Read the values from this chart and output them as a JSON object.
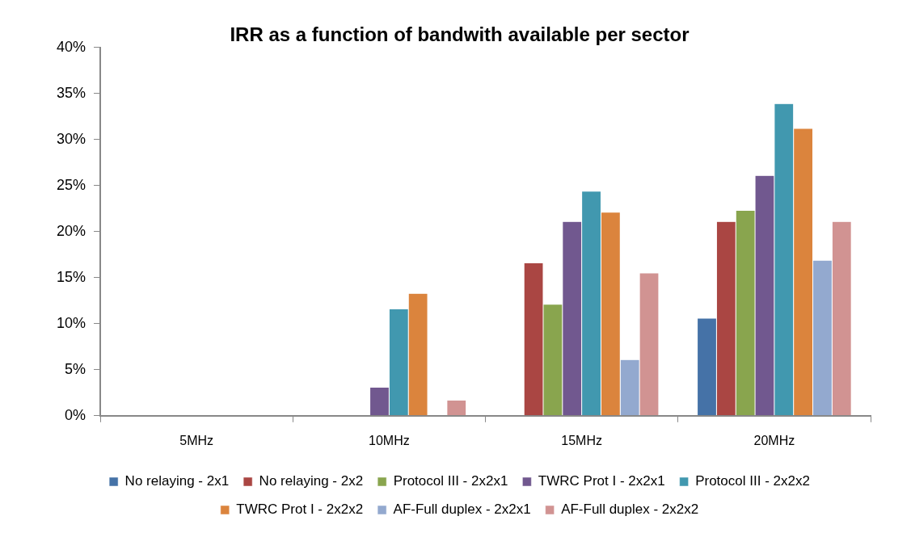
{
  "chart_data": {
    "type": "bar",
    "title": "IRR as a function of bandwith available per sector",
    "categories": [
      "5MHz",
      "10MHz",
      "15MHz",
      "20MHz"
    ],
    "series": [
      {
        "name": "No relaying - 2x1",
        "color": "#4572a7",
        "values": [
          0,
          0,
          0,
          10.6
        ]
      },
      {
        "name": "No relaying - 2x2",
        "color": "#aa4643",
        "values": [
          0,
          0,
          16.6,
          21.1
        ]
      },
      {
        "name": "Protocol III - 2x2x1",
        "color": "#89a54e",
        "values": [
          0,
          0,
          12.1,
          22.3
        ]
      },
      {
        "name": "TWRC Prot I - 2x2x1",
        "color": "#71588f",
        "values": [
          0,
          3.1,
          21.1,
          26.1
        ]
      },
      {
        "name": "Protocol III - 2x2x2",
        "color": "#4198af",
        "values": [
          0,
          11.6,
          24.4,
          33.9
        ]
      },
      {
        "name": "TWRC Prot I - 2x2x2",
        "color": "#db843d",
        "values": [
          0,
          13.3,
          22.1,
          31.2
        ]
      },
      {
        "name": "AF-Full duplex - 2x2x1",
        "color": "#93a9cf",
        "values": [
          0,
          0,
          6.1,
          16.9
        ]
      },
      {
        "name": "AF-Full duplex - 2x2x2",
        "color": "#d19392",
        "values": [
          0,
          1.7,
          15.5,
          21.1
        ]
      }
    ],
    "ylim": [
      0,
      40
    ],
    "yticks": [
      {
        "value": 0,
        "label": "0%"
      },
      {
        "value": 5,
        "label": "5%"
      },
      {
        "value": 10,
        "label": "10%"
      },
      {
        "value": 15,
        "label": "15%"
      },
      {
        "value": 20,
        "label": "20%"
      },
      {
        "value": 25,
        "label": "25%"
      },
      {
        "value": 30,
        "label": "30%"
      },
      {
        "value": 35,
        "label": "35%"
      },
      {
        "value": 40,
        "label": "40%"
      }
    ],
    "grid": false,
    "legend": "bottom"
  }
}
